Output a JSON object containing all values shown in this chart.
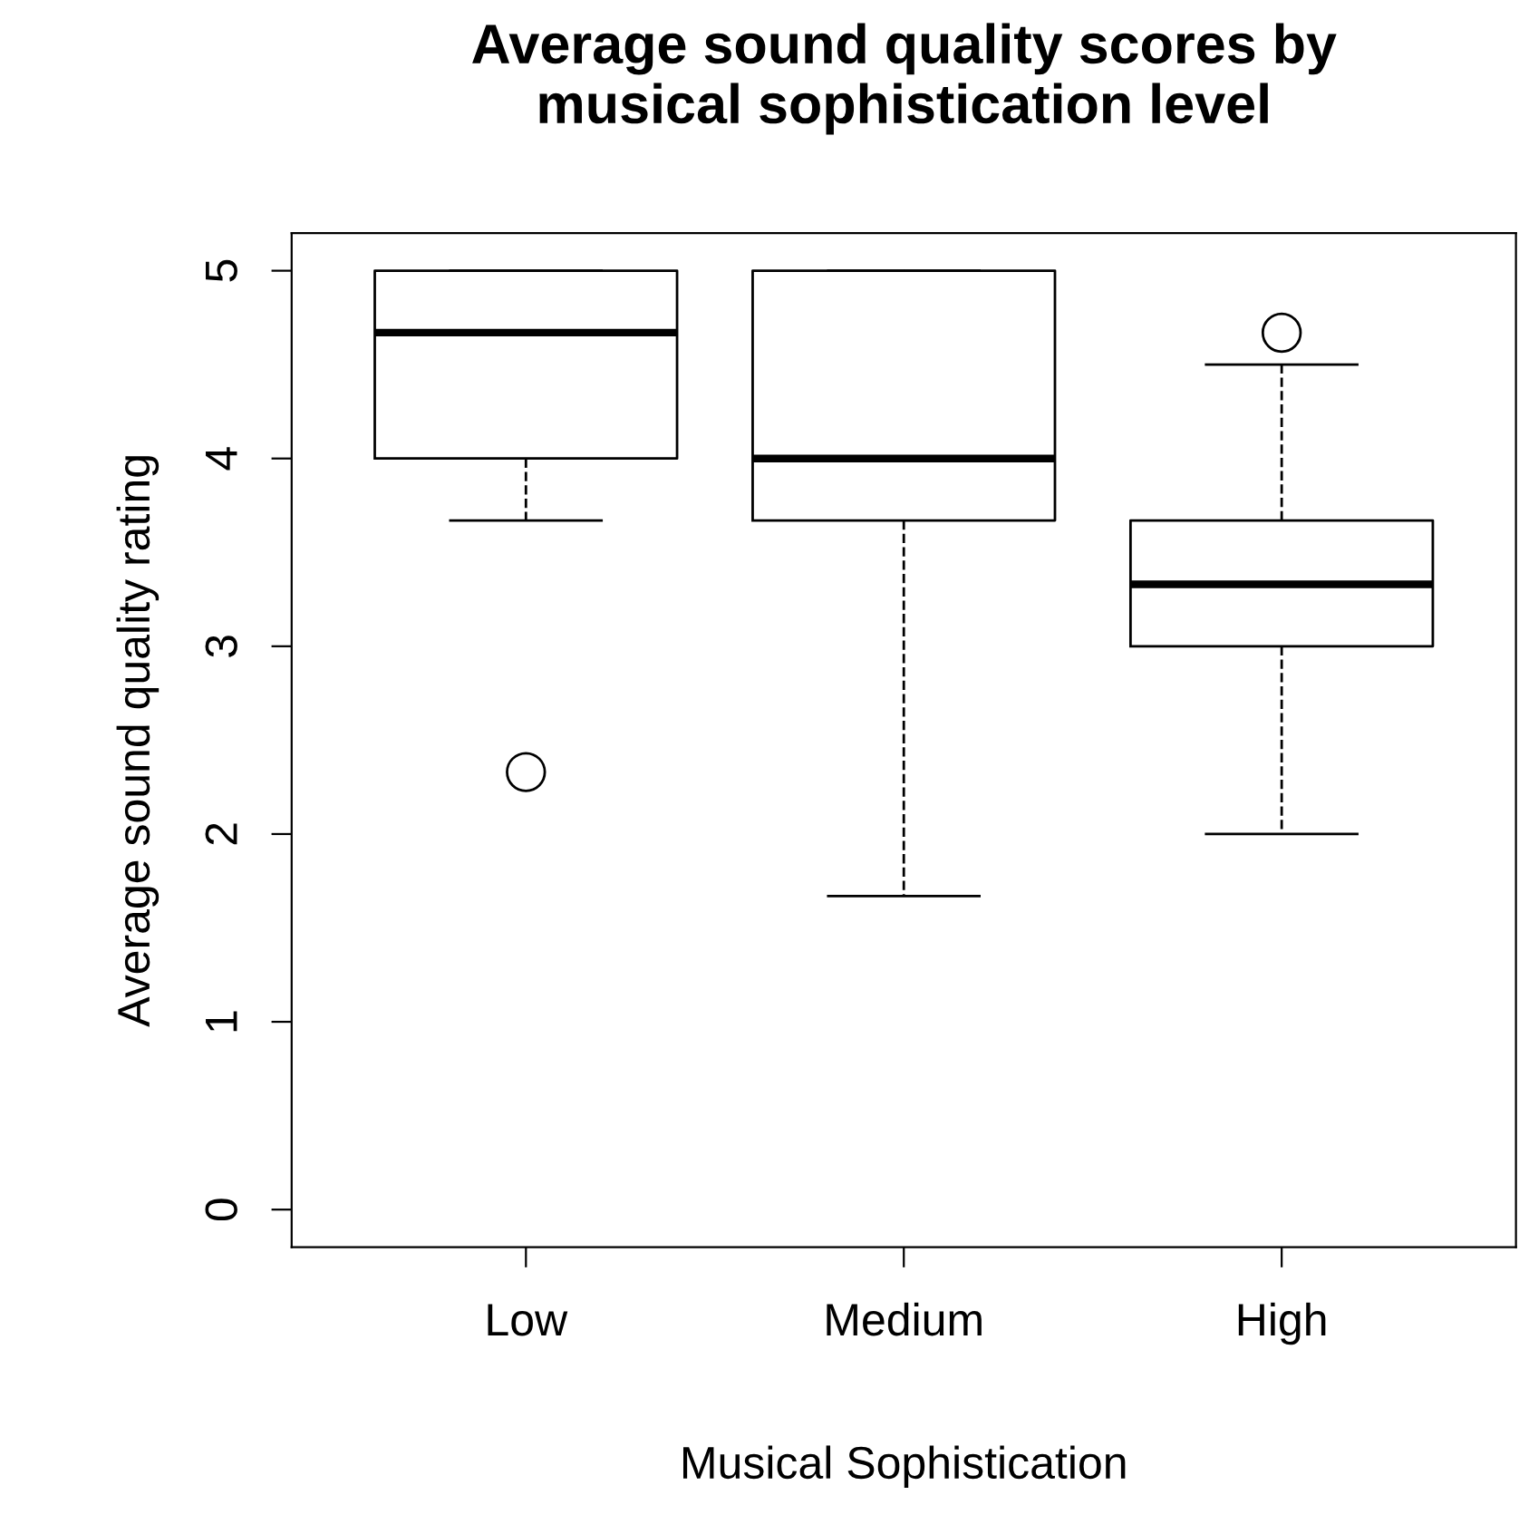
{
  "chart_data": {
    "type": "box",
    "title": "Average sound quality scores by\nmusical sophistication level",
    "xlabel": "Musical Sophistication",
    "ylabel": "Average sound quality rating",
    "categories": [
      "Low",
      "Medium",
      "High"
    ],
    "boxes": [
      {
        "low": 3.67,
        "q1": 4,
        "median": 4.67,
        "q3": 5,
        "high": 5,
        "outliers": [
          2.33
        ]
      },
      {
        "low": 1.67,
        "q1": 3.67,
        "median": 4,
        "q3": 5,
        "high": 5
      },
      {
        "low": 2,
        "q1": 3,
        "median": 3.33,
        "q3": 3.67,
        "high": 4.5,
        "outliers": [
          4.67
        ]
      }
    ],
    "ylim": [
      -0.2,
      5.2
    ],
    "yticks": [
      0,
      1,
      2,
      3,
      4,
      5
    ],
    "grid": false,
    "line_style": "dashed"
  }
}
